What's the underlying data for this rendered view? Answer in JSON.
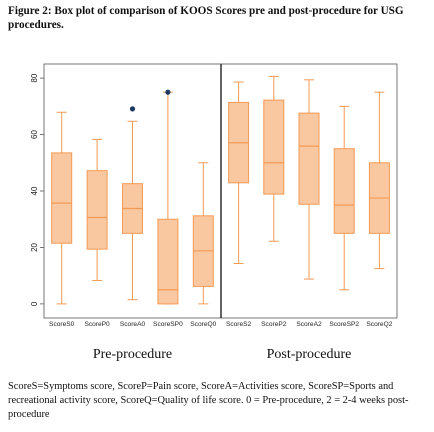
{
  "figure_title": "Figure 2: Box plot of comparison of KOOS Scores pre and post-procedure for USG procedures.",
  "caption": "ScoreS=Symptoms score, ScoreP=Pain score, ScoreA=Activities score, ScoreSP=Sports and recreational activity score, ScoreQ=Quality of life score. 0 = Pre-procedure, 2 = 2-4 weeks post-procedure",
  "colors": {
    "box_fill": "#fac8a0",
    "box_stroke": "#f39a55",
    "outlier": "#1c3a63",
    "frame": "#555555",
    "divider": "#222222"
  },
  "chart_data": {
    "type": "box",
    "ylim": [
      -5,
      85
    ],
    "yticks": [
      "0",
      "20",
      "40",
      "60",
      "80"
    ],
    "ytick_values": [
      0,
      20,
      40,
      60,
      80
    ],
    "grid": false,
    "panels": [
      {
        "label": "Pre-procedure",
        "boxes": [
          {
            "category": "ScoreS0",
            "min": 0,
            "q1": 21.5,
            "median": 35.7,
            "q3": 53.5,
            "max": 67.9,
            "outliers": []
          },
          {
            "category": "ScoreP0",
            "min": 8.3,
            "q1": 19.4,
            "median": 30.6,
            "q3": 47.2,
            "max": 58.3,
            "outliers": []
          },
          {
            "category": "ScoreA0",
            "min": 1.5,
            "q1": 25.0,
            "median": 33.8,
            "q3": 42.6,
            "max": 64.7,
            "outliers": [
              69.1
            ]
          },
          {
            "category": "ScoreSP0",
            "min": 0,
            "q1": 0,
            "median": 5.0,
            "q3": 30.0,
            "max": 75.0,
            "outliers": [
              75.0
            ]
          },
          {
            "category": "ScoreQ0",
            "min": 0,
            "q1": 6.2,
            "median": 18.8,
            "q3": 31.2,
            "max": 50.0,
            "outliers": []
          }
        ]
      },
      {
        "label": "Post-procedure",
        "boxes": [
          {
            "category": "ScoreS2",
            "min": 14.3,
            "q1": 42.9,
            "median": 57.1,
            "q3": 71.4,
            "max": 78.6,
            "outliers": []
          },
          {
            "category": "ScoreP2",
            "min": 22.2,
            "q1": 38.9,
            "median": 50.0,
            "q3": 72.2,
            "max": 80.6,
            "outliers": []
          },
          {
            "category": "ScoreA2",
            "min": 8.8,
            "q1": 35.3,
            "median": 55.9,
            "q3": 67.6,
            "max": 79.4,
            "outliers": []
          },
          {
            "category": "ScoreSP2",
            "min": 5.0,
            "q1": 25.0,
            "median": 35.0,
            "q3": 55.0,
            "max": 70.0,
            "outliers": []
          },
          {
            "category": "ScoreQ2",
            "min": 12.5,
            "q1": 25.0,
            "median": 37.5,
            "q3": 50.0,
            "max": 75.0,
            "outliers": []
          }
        ]
      }
    ]
  }
}
